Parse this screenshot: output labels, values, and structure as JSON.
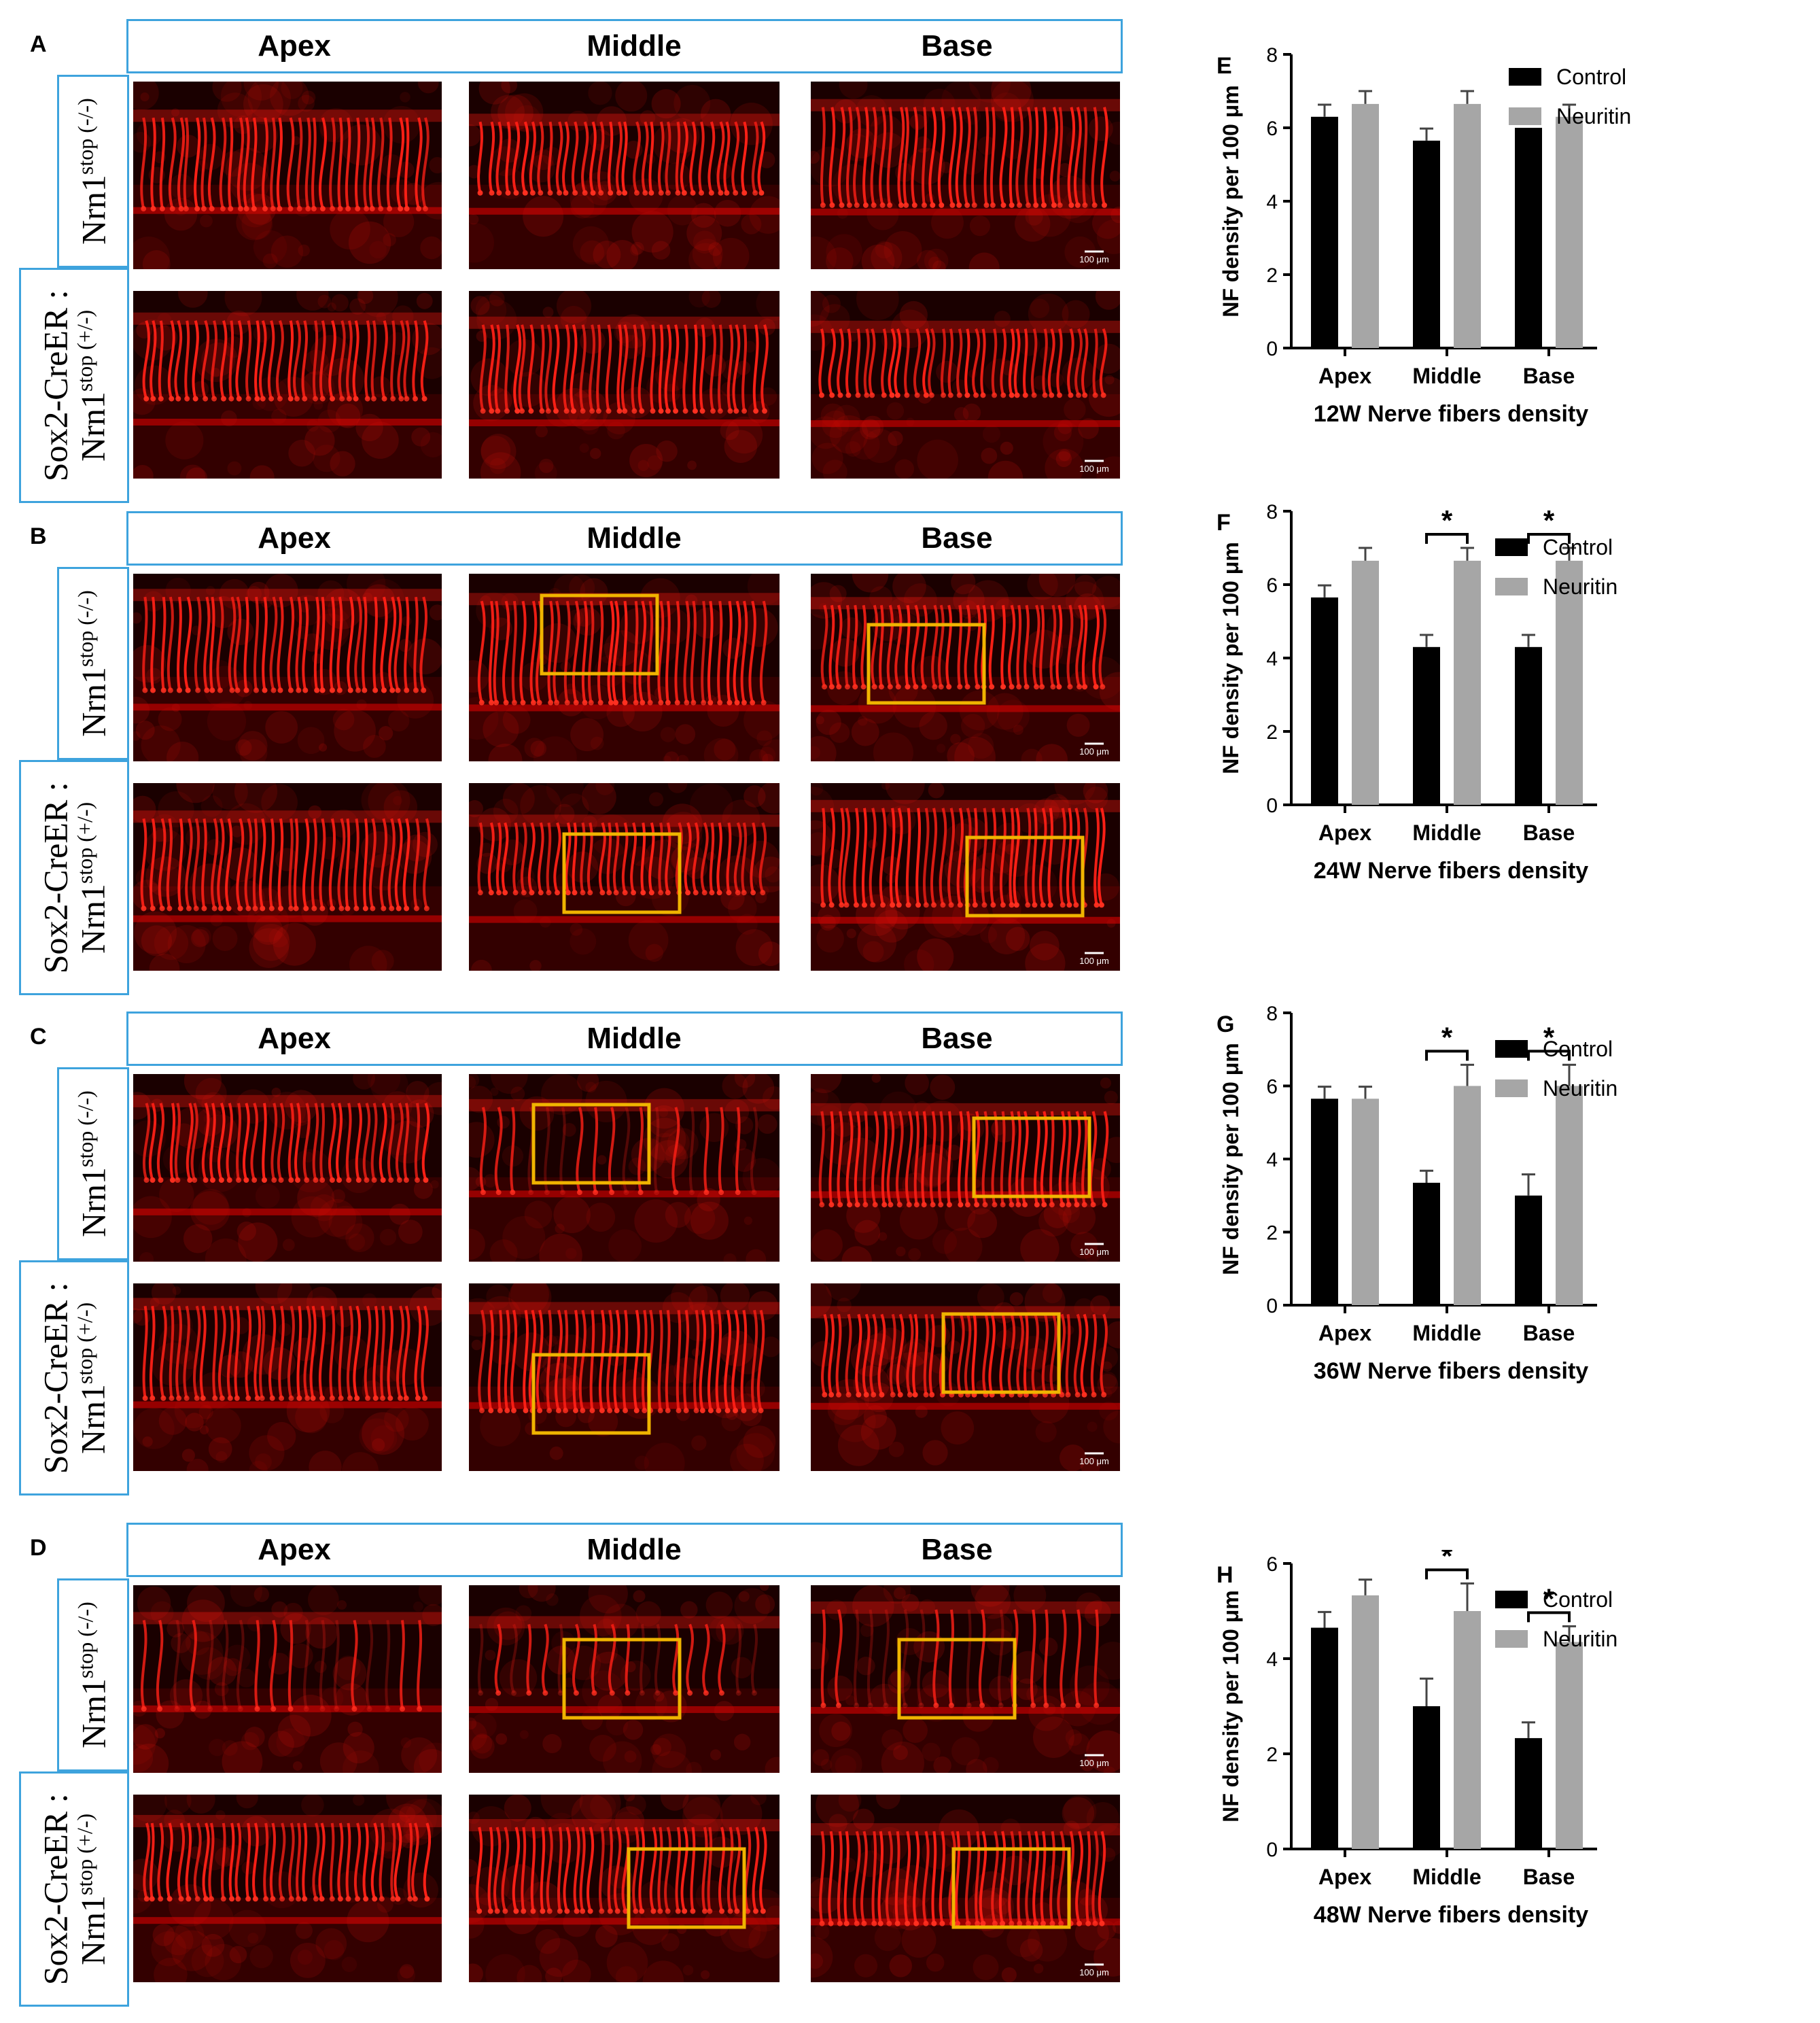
{
  "columns": [
    "Apex",
    "Middle",
    "Base"
  ],
  "panel_letters": [
    "A",
    "B",
    "C",
    "D"
  ],
  "chart_letters": [
    "E",
    "F",
    "G",
    "H"
  ],
  "row_labels": {
    "neg": {
      "gene": "Nrn1",
      "sup_stop": "stop",
      "geno": "(-/-)"
    },
    "pos": {
      "line1": "Sox2-CreER :",
      "gene": "Nrn1",
      "sup_stop": "stop",
      "geno": "(+/-)"
    }
  },
  "scale_bar": "100 μm",
  "colors": {
    "panel_border": "#3ea3dd",
    "highlight_box": "#f0b400",
    "control": "#000000",
    "neuritin": "#a6a6a6",
    "fluorescence": "#e8110f"
  },
  "chart_data": [
    {
      "type": "bar",
      "xlabel": "12W Nerve fibers density",
      "ylabel": "NF density per 100 μm",
      "categories": [
        "Apex",
        "Middle",
        "Base"
      ],
      "ylim": [
        0,
        8
      ],
      "yticks": [
        0,
        2,
        4,
        6,
        8
      ],
      "series": [
        {
          "name": "Control",
          "values": [
            6.3,
            5.65,
            6.0
          ],
          "errors": [
            0.33,
            0.33,
            0.0
          ]
        },
        {
          "name": "Neuritin",
          "values": [
            6.65,
            6.65,
            6.3
          ],
          "errors": [
            0.35,
            0.35,
            0.33
          ]
        }
      ],
      "significance": [],
      "legend": "right"
    },
    {
      "type": "bar",
      "xlabel": "24W Nerve fibers density",
      "ylabel": "NF density per 100 μm",
      "categories": [
        "Apex",
        "Middle",
        "Base"
      ],
      "ylim": [
        0,
        8
      ],
      "yticks": [
        0,
        2,
        4,
        6,
        8
      ],
      "series": [
        {
          "name": "Control",
          "values": [
            5.65,
            4.3,
            4.3
          ],
          "errors": [
            0.33,
            0.33,
            0.33
          ]
        },
        {
          "name": "Neuritin",
          "values": [
            6.65,
            6.65,
            6.65
          ],
          "errors": [
            0.35,
            0.35,
            0.35
          ]
        }
      ],
      "significance": [
        {
          "category": "Middle",
          "label": "*"
        },
        {
          "category": "Base",
          "label": "*"
        }
      ],
      "legend": "right"
    },
    {
      "type": "bar",
      "xlabel": "36W Nerve fibers density",
      "ylabel": "NF density per 100 μm",
      "categories": [
        "Apex",
        "Middle",
        "Base"
      ],
      "ylim": [
        0,
        8
      ],
      "yticks": [
        0,
        2,
        4,
        6,
        8
      ],
      "series": [
        {
          "name": "Control",
          "values": [
            5.65,
            3.35,
            3.0
          ],
          "errors": [
            0.33,
            0.33,
            0.58
          ]
        },
        {
          "name": "Neuritin",
          "values": [
            5.65,
            6.0,
            6.0
          ],
          "errors": [
            0.33,
            0.58,
            0.58
          ]
        }
      ],
      "significance": [
        {
          "category": "Middle",
          "label": "*"
        },
        {
          "category": "Base",
          "label": "*"
        }
      ],
      "legend": "right"
    },
    {
      "type": "bar",
      "xlabel": "48W Nerve fibers density",
      "ylabel": "NF density per 100 μm",
      "categories": [
        "Apex",
        "Middle",
        "Base"
      ],
      "ylim": [
        0,
        6
      ],
      "yticks": [
        0,
        2,
        4,
        6
      ],
      "series": [
        {
          "name": "Control",
          "values": [
            4.65,
            3.0,
            2.33
          ],
          "errors": [
            0.33,
            0.58,
            0.33
          ]
        },
        {
          "name": "Neuritin",
          "values": [
            5.33,
            5.0,
            4.35
          ],
          "errors": [
            0.33,
            0.58,
            0.33
          ]
        }
      ],
      "significance": [
        {
          "category": "Middle",
          "label": "*"
        },
        {
          "category": "Base",
          "label": "*"
        }
      ],
      "legend": "right"
    }
  ]
}
